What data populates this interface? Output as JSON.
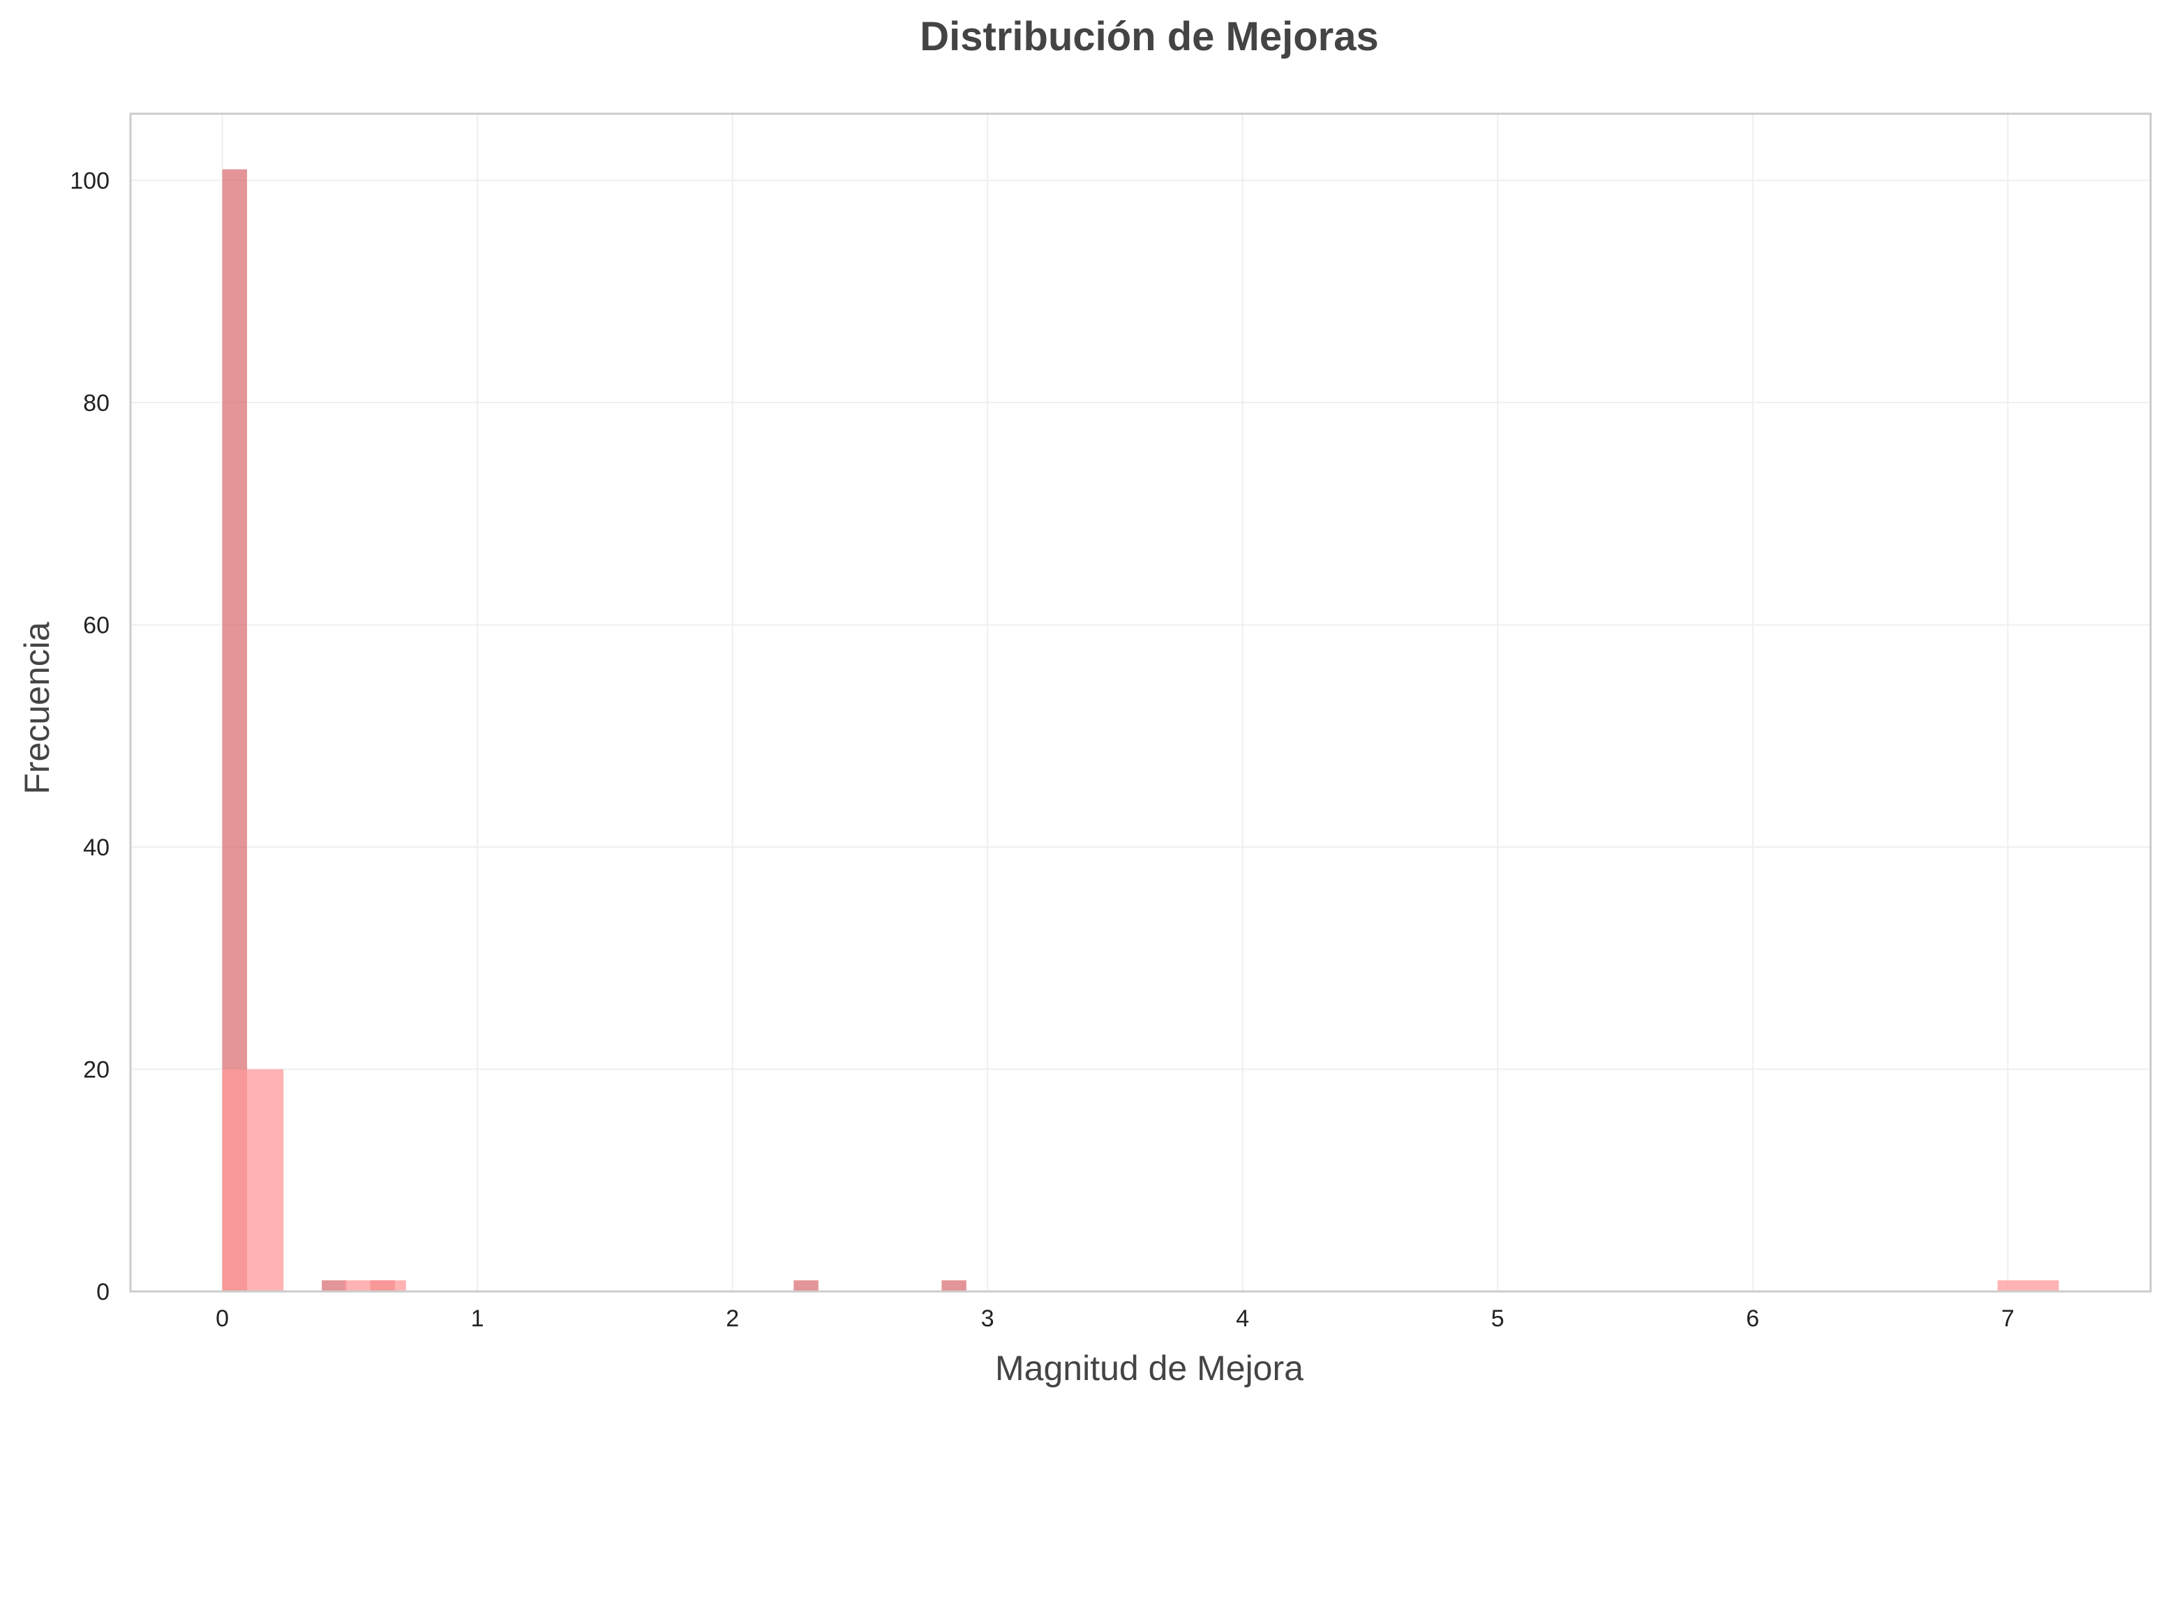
{
  "chart_data": {
    "type": "bar",
    "title": "Distribución de Mejoras",
    "xlabel": "Magnitud de Mejora",
    "ylabel": "Frecuencia",
    "xlim": [
      -0.36,
      7.56
    ],
    "ylim": [
      0,
      106
    ],
    "xticks": [
      0,
      1,
      2,
      3,
      4,
      5,
      6,
      7
    ],
    "yticks": [
      0,
      20,
      40,
      60,
      80,
      100
    ],
    "grid": true,
    "colors": {
      "series_a": "#d9686c",
      "series_b": "#ff9a9a",
      "axes": "#cccccc",
      "text": "#444444",
      "grid": "#efefef"
    },
    "series": [
      {
        "color": "#d9686c",
        "opacity": 0.7,
        "bins": [
          {
            "x0": 0.0,
            "x1": 0.097,
            "count": 101
          },
          {
            "x0": 0.39,
            "x1": 0.487,
            "count": 1
          },
          {
            "x0": 0.58,
            "x1": 0.677,
            "count": 1
          },
          {
            "x0": 2.24,
            "x1": 2.337,
            "count": 1
          },
          {
            "x0": 2.82,
            "x1": 2.917,
            "count": 1
          }
        ]
      },
      {
        "color": "#ff9a9a",
        "opacity": 0.75,
        "bins": [
          {
            "x0": 0.0,
            "x1": 0.24,
            "count": 20
          },
          {
            "x0": 0.48,
            "x1": 0.72,
            "count": 1
          },
          {
            "x0": 6.96,
            "x1": 7.2,
            "count": 1
          }
        ]
      }
    ]
  }
}
